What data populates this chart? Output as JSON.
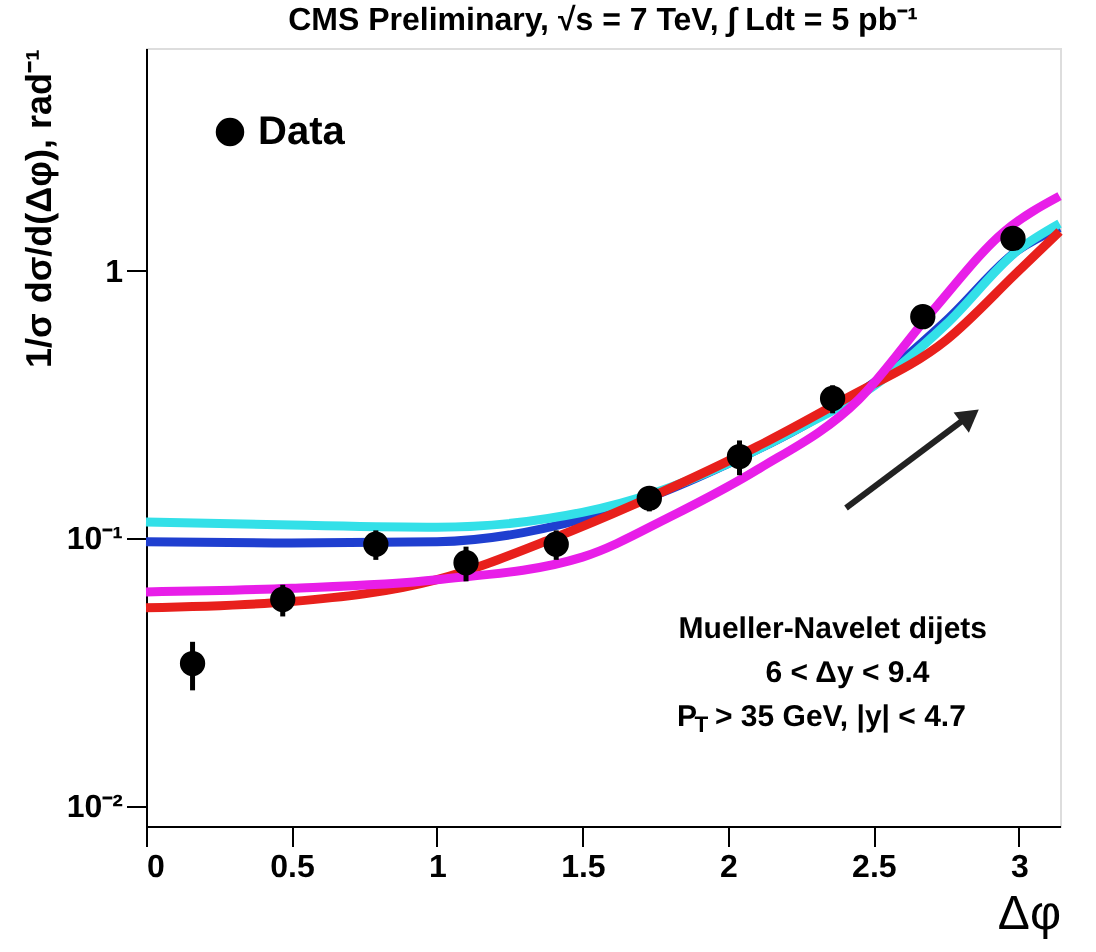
{
  "chart_data": {
    "type": "scatter",
    "title": "CMS Preliminary,  √s = 7 TeV, ∫ Ldt = 5 pb⁻¹",
    "xlabel": "Δφ",
    "ylabel": "1/σ dσ/d(Δφ), rad⁻¹",
    "xlim": [
      0,
      3.1416
    ],
    "xticks": [
      0,
      0.5,
      1,
      1.5,
      2,
      2.5,
      3
    ],
    "ylim": [
      0.0084,
      6.8
    ],
    "yticks": [
      {
        "value": 0.01,
        "label": "10⁻²"
      },
      {
        "value": 0.1,
        "label": "10⁻¹"
      },
      1
    ],
    "log": true,
    "grid": false,
    "legend": "top left",
    "annotations": [
      "Mueller-Navelet dijets",
      "6 < Δy < 9.4",
      "P$_{T}$ > 35 GeV, |y| < 4.7"
    ],
    "series": [
      {
        "name": "Data",
        "marker": "circle",
        "color": "#000000",
        "x": [
          0.16,
          0.47,
          0.79,
          1.1,
          1.41,
          1.73,
          2.04,
          2.36,
          2.67,
          2.98
        ],
        "values": [
          0.034,
          0.059,
          0.095,
          0.081,
          0.095,
          0.141,
          0.202,
          0.333,
          0.673,
          1.32
        ],
        "errors": [
          0.007,
          0.008,
          0.012,
          0.012,
          0.012,
          0.015,
          0.03,
          0.04,
          0.06,
          0.1
        ]
      },
      {
        "type": "line",
        "color": "#1f3fd0",
        "x": [
          0,
          0.5,
          1,
          1.5,
          1.75,
          2,
          2.25,
          2.5,
          2.75,
          3,
          3.14
        ],
        "values": [
          0.097,
          0.096,
          0.097,
          0.118,
          0.145,
          0.19,
          0.26,
          0.38,
          0.65,
          1.2,
          1.45
        ]
      },
      {
        "type": "line",
        "color": "#33e0e8",
        "x": [
          0,
          0.5,
          1,
          1.5,
          1.75,
          2,
          2.25,
          2.5,
          2.75,
          3,
          3.14
        ],
        "values": [
          0.115,
          0.112,
          0.11,
          0.125,
          0.148,
          0.19,
          0.26,
          0.37,
          0.63,
          1.2,
          1.5
        ]
      },
      {
        "type": "line",
        "color": "#e8201c",
        "x": [
          0,
          0.5,
          1,
          1.4,
          1.75,
          2.1,
          2.4,
          2.75,
          3,
          3.14
        ],
        "values": [
          0.055,
          0.058,
          0.07,
          0.1,
          0.145,
          0.22,
          0.33,
          0.55,
          1.0,
          1.4
        ]
      },
      {
        "type": "line",
        "color": "#e81ee8",
        "x": [
          0,
          0.5,
          1,
          1.5,
          1.8,
          2.1,
          2.45,
          2.7,
          2.95,
          3.14
        ],
        "values": [
          0.063,
          0.065,
          0.07,
          0.085,
          0.12,
          0.18,
          0.33,
          0.7,
          1.4,
          1.9
        ]
      }
    ]
  }
}
